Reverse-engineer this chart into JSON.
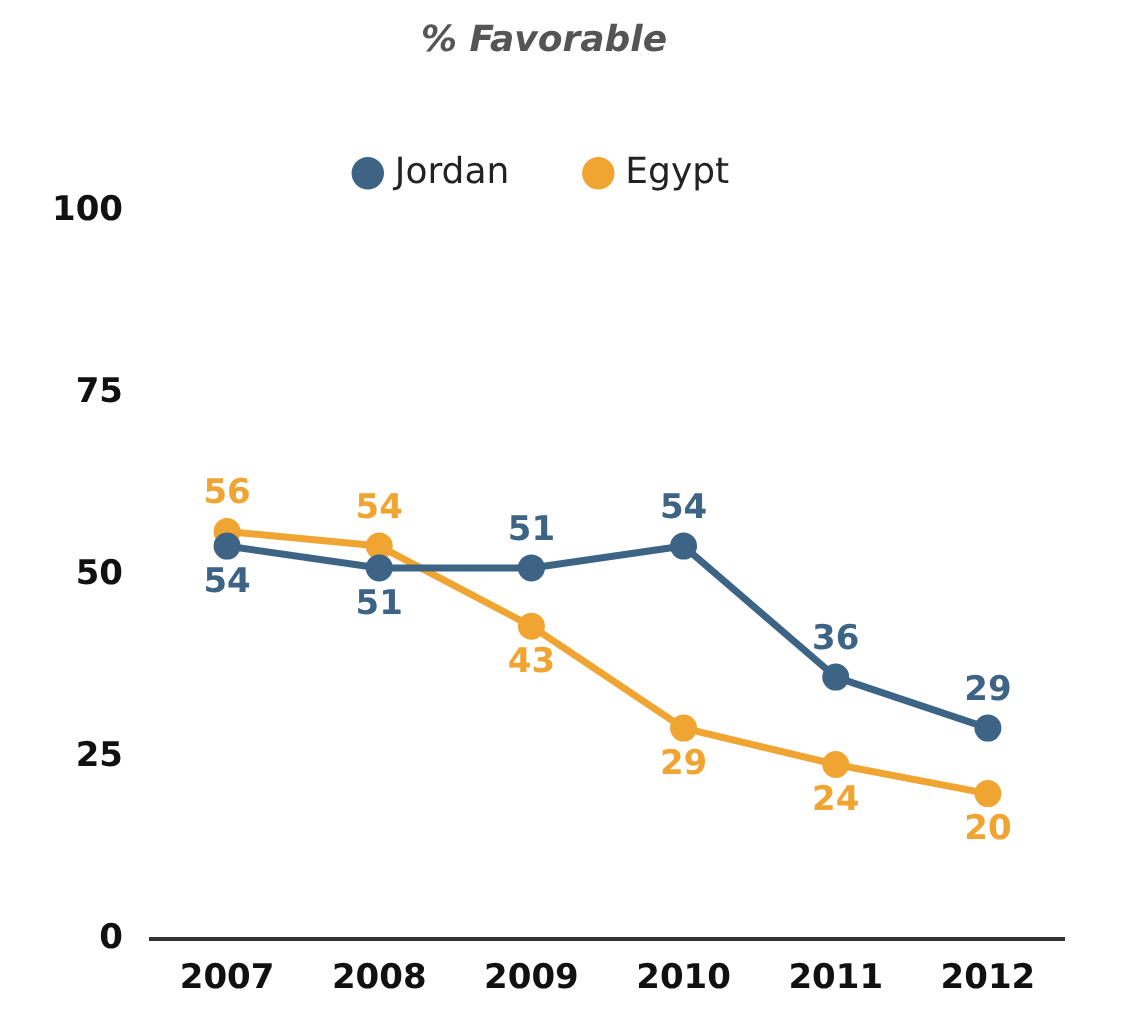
{
  "chart_data": {
    "type": "line",
    "title": "% Favorable",
    "categories": [
      "2007",
      "2008",
      "2009",
      "2010",
      "2011",
      "2012"
    ],
    "series": [
      {
        "name": "Jordan",
        "color": "#3e6485",
        "values": [
          54,
          51,
          51,
          54,
          36,
          29
        ]
      },
      {
        "name": "Egypt",
        "color": "#f0a431",
        "values": [
          56,
          54,
          43,
          29,
          24,
          20
        ]
      }
    ],
    "ylim": [
      0,
      100
    ],
    "yticks": [
      0,
      25,
      50,
      75,
      100
    ],
    "grid": false,
    "legend": "top",
    "marker": "circle",
    "line_style": "solid",
    "data_labels": true
  }
}
